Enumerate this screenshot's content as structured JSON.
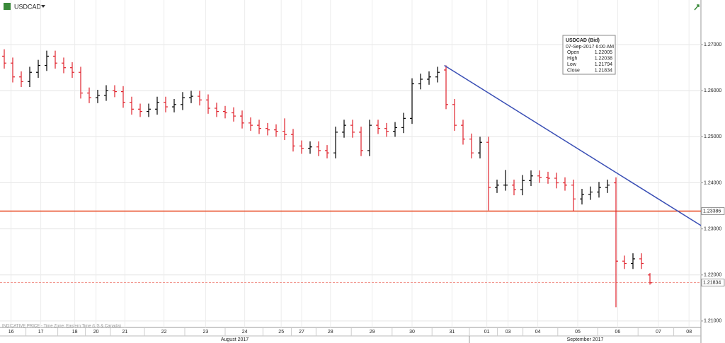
{
  "chart_data": {
    "type": "ohlc",
    "title": "USDCAD",
    "footer": "INDICATIVE PRICE - Time Zone: Eastern Time (US & Canada)",
    "open": [
      1.2675,
      1.266,
      1.263,
      1.262,
      1.264,
      1.2655,
      1.2675,
      1.266,
      1.265,
      1.264,
      1.2595,
      1.2585,
      1.259,
      1.26,
      1.2598,
      1.2575,
      1.256,
      1.2555,
      1.256,
      1.2575,
      1.2565,
      1.257,
      1.2585,
      1.2588,
      1.258,
      1.2562,
      1.2555,
      1.2552,
      1.2545,
      1.253,
      1.2525,
      1.2518,
      1.2515,
      1.2512,
      1.2505,
      1.248,
      1.2475,
      1.2478,
      1.247,
      1.2465,
      1.251,
      1.2525,
      1.251,
      1.247,
      1.2525,
      1.2518,
      1.2512,
      1.252,
      1.254,
      1.2615,
      1.2625,
      1.263,
      1.2645,
      1.257,
      1.2525,
      1.2495,
      1.2465,
      1.2488,
      1.239,
      1.2395,
      1.2395,
      1.2385,
      1.2405,
      1.2415,
      1.2412,
      1.241,
      1.24,
      1.2395,
      1.2365,
      1.2375,
      1.238,
      1.239,
      1.24,
      1.223,
      1.2225,
      1.2235,
      1.22
    ],
    "high": [
      1.269,
      1.2672,
      1.2642,
      1.2652,
      1.2667,
      1.2687,
      1.2687,
      1.2672,
      1.2662,
      1.2652,
      1.2607,
      1.2602,
      1.2612,
      1.2612,
      1.261,
      1.2587,
      1.2572,
      1.2572,
      1.2587,
      1.2587,
      1.2582,
      1.2597,
      1.26,
      1.26,
      1.2592,
      1.2574,
      1.2567,
      1.2564,
      1.2557,
      1.2542,
      1.2537,
      1.253,
      1.2527,
      1.254,
      1.2517,
      1.2492,
      1.249,
      1.249,
      1.2482,
      1.2522,
      1.2537,
      1.2537,
      1.2522,
      1.2537,
      1.2537,
      1.253,
      1.2532,
      1.2552,
      1.2627,
      1.2637,
      1.2642,
      1.2652,
      1.2655,
      1.2582,
      1.2537,
      1.2507,
      1.25,
      1.25,
      1.2407,
      1.2428,
      1.2407,
      1.2417,
      1.2427,
      1.2427,
      1.2424,
      1.2422,
      1.2412,
      1.2407,
      1.2387,
      1.2392,
      1.2402,
      1.2407,
      1.2412,
      1.2242,
      1.2247,
      1.2247,
      1.2204
    ],
    "low": [
      1.2648,
      1.2618,
      1.2608,
      1.2608,
      1.2628,
      1.2643,
      1.2648,
      1.2638,
      1.2628,
      1.2583,
      1.2573,
      1.2573,
      1.2578,
      1.2586,
      1.2563,
      1.2548,
      1.2543,
      1.2543,
      1.2548,
      1.2553,
      1.2553,
      1.2558,
      1.2573,
      1.2568,
      1.255,
      1.2543,
      1.254,
      1.2533,
      1.2518,
      1.2513,
      1.2506,
      1.2503,
      1.25,
      1.2493,
      1.2468,
      1.2463,
      1.2463,
      1.2458,
      1.2453,
      1.2453,
      1.2498,
      1.2498,
      1.2458,
      1.2458,
      1.2506,
      1.25,
      1.25,
      1.2508,
      1.2528,
      1.2603,
      1.2613,
      1.2618,
      1.256,
      1.2513,
      1.2483,
      1.2453,
      1.2453,
      1.234,
      1.2378,
      1.2383,
      1.2373,
      1.2373,
      1.2393,
      1.24,
      1.2398,
      1.2388,
      1.2383,
      1.2338,
      1.2353,
      1.2363,
      1.2368,
      1.2378,
      1.213,
      1.2213,
      1.2213,
      1.2213,
      1.2179
    ],
    "close": [
      1.266,
      1.263,
      1.262,
      1.264,
      1.2655,
      1.2675,
      1.266,
      1.265,
      1.264,
      1.2595,
      1.2585,
      1.259,
      1.26,
      1.2598,
      1.2575,
      1.256,
      1.2555,
      1.256,
      1.2575,
      1.2565,
      1.257,
      1.2585,
      1.2588,
      1.258,
      1.2562,
      1.2555,
      1.2552,
      1.2545,
      1.253,
      1.2525,
      1.2518,
      1.2515,
      1.2512,
      1.2505,
      1.248,
      1.2475,
      1.2478,
      1.247,
      1.2465,
      1.251,
      1.2525,
      1.251,
      1.247,
      1.2525,
      1.2518,
      1.2512,
      1.252,
      1.254,
      1.2615,
      1.2625,
      1.263,
      1.264,
      1.257,
      1.2525,
      1.2495,
      1.2465,
      1.2488,
      1.239,
      1.2395,
      1.2395,
      1.2385,
      1.2405,
      1.2415,
      1.2412,
      1.241,
      1.24,
      1.2395,
      1.2365,
      1.2375,
      1.238,
      1.239,
      1.2395,
      1.223,
      1.2225,
      1.2235,
      1.2225,
      1.2183
    ],
    "up_color": "#000000",
    "down_color": "#e0202a",
    "xlim": [
      -0.5,
      82
    ],
    "xticks": [
      {
        "value": 0.8,
        "label": "16"
      },
      {
        "value": 4.3,
        "label": "17"
      },
      {
        "value": 8.3,
        "label": "18"
      },
      {
        "value": 10.8,
        "label": "20"
      },
      {
        "value": 14.2,
        "label": "21"
      },
      {
        "value": 18.8,
        "label": "22"
      },
      {
        "value": 23.7,
        "label": "23"
      },
      {
        "value": 28.3,
        "label": "24"
      },
      {
        "value": 32.6,
        "label": "25"
      },
      {
        "value": 35,
        "label": "27"
      },
      {
        "value": 38.4,
        "label": "28"
      },
      {
        "value": 43.3,
        "label": "29"
      },
      {
        "value": 48,
        "label": "30"
      },
      {
        "value": 52.7,
        "label": "31"
      },
      {
        "value": 56.8,
        "label": "01"
      },
      {
        "value": 59.3,
        "label": "03"
      },
      {
        "value": 62.8,
        "label": "04"
      },
      {
        "value": 67.5,
        "label": "05"
      },
      {
        "value": 72.2,
        "label": "06"
      },
      {
        "value": 77,
        "label": "07"
      },
      {
        "value": 80.6,
        "label": "08"
      }
    ],
    "month_labels": [
      "August 2017",
      "September 2017"
    ],
    "ylim": [
      1.2086,
      1.2797
    ],
    "yticks": [
      {
        "value": 1.21,
        "label": "1.21000"
      },
      {
        "value": 1.22,
        "label": "1.22000"
      },
      {
        "value": 1.23,
        "label": "1.23000"
      },
      {
        "value": 1.24,
        "label": "1.24000"
      },
      {
        "value": 1.25,
        "label": "1.25000"
      },
      {
        "value": 1.26,
        "label": "1.26000"
      },
      {
        "value": 1.27,
        "label": "1.27000"
      }
    ],
    "grid": true,
    "hlines": [
      {
        "value": 1.23386,
        "color": "#e8451e",
        "dashed": false
      },
      {
        "value": 1.21834,
        "color": "#f08a80",
        "dashed": true
      }
    ],
    "trendline": {
      "x": [
        51.8,
        84.8
      ],
      "y": [
        1.2655,
        1.2275
      ],
      "color": "#3a4fb5"
    },
    "info": {
      "title": "USDCAD (Bid)",
      "time": "07-Sep-2017 6:00 AM",
      "rows": [
        {
          "label": "Open",
          "value": 1.22005
        },
        {
          "label": "High",
          "value": 1.22038
        },
        {
          "label": "Low",
          "value": 1.21794
        },
        {
          "label": "Close",
          "value": 1.21834
        }
      ]
    }
  }
}
